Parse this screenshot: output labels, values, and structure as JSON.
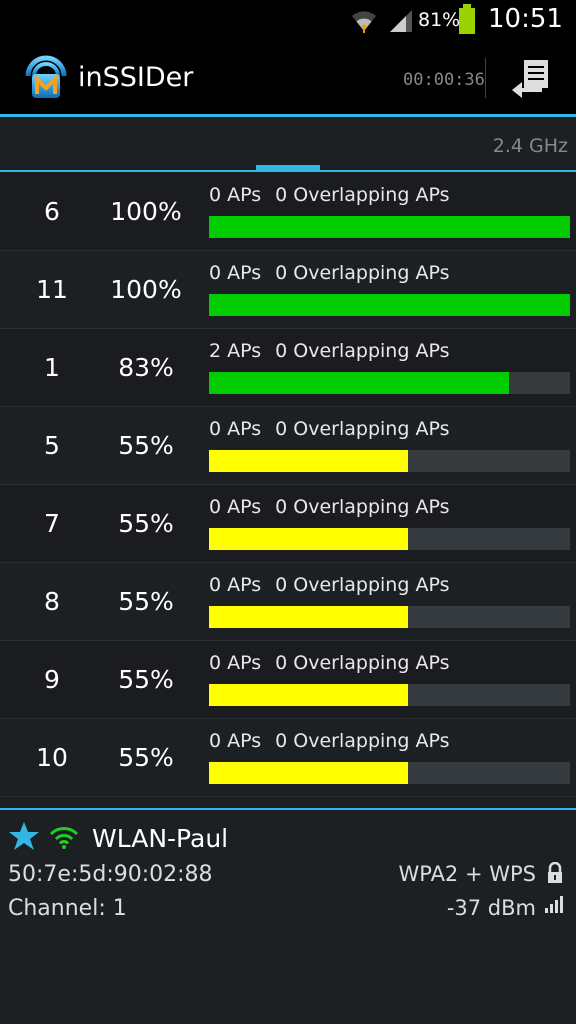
{
  "status_bar": {
    "battery_percent": "81%",
    "time": "10:51"
  },
  "app": {
    "title": "inSSIDer",
    "timer": "00:00:36"
  },
  "tabs": {
    "band_label": "2.4 GHz"
  },
  "channels": [
    {
      "channel": "6",
      "rating": "100%",
      "aps": "0 APs",
      "overlapping": "0 Overlapping APs",
      "fill_percent": 100,
      "color": "#00cc00"
    },
    {
      "channel": "11",
      "rating": "100%",
      "aps": "0 APs",
      "overlapping": "0 Overlapping APs",
      "fill_percent": 100,
      "color": "#00cc00"
    },
    {
      "channel": "1",
      "rating": "83%",
      "aps": "2 APs",
      "overlapping": "0 Overlapping APs",
      "fill_percent": 83,
      "color": "#00cc00"
    },
    {
      "channel": "5",
      "rating": "55%",
      "aps": "0 APs",
      "overlapping": "0 Overlapping APs",
      "fill_percent": 55,
      "color": "#ffff00"
    },
    {
      "channel": "7",
      "rating": "55%",
      "aps": "0 APs",
      "overlapping": "0 Overlapping APs",
      "fill_percent": 55,
      "color": "#ffff00"
    },
    {
      "channel": "8",
      "rating": "55%",
      "aps": "0 APs",
      "overlapping": "0 Overlapping APs",
      "fill_percent": 55,
      "color": "#ffff00"
    },
    {
      "channel": "9",
      "rating": "55%",
      "aps": "0 APs",
      "overlapping": "0 Overlapping APs",
      "fill_percent": 55,
      "color": "#ffff00"
    },
    {
      "channel": "10",
      "rating": "55%",
      "aps": "0 APs",
      "overlapping": "0 Overlapping APs",
      "fill_percent": 55,
      "color": "#ffff00"
    }
  ],
  "connected": {
    "ssid": "WLAN-Paul",
    "mac": "50:7e:5d:90:02:88",
    "channel": "Channel: 1",
    "security": "WPA2 + WPS",
    "rssi": "-37 dBm"
  },
  "colors": {
    "accent": "#33b5e5",
    "good": "#00cc00",
    "medium": "#ffff00"
  }
}
